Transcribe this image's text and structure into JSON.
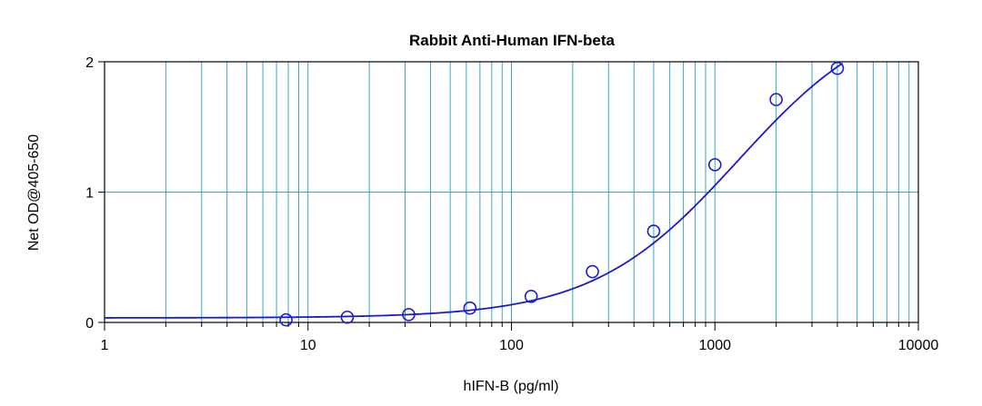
{
  "chart_data": {
    "type": "scatter",
    "title": "Rabbit Anti-Human IFN-beta",
    "xlabel": "hIFN-B (pg/ml)",
    "ylabel": "Net OD@405-650",
    "xscale": "log",
    "xlim": [
      1,
      10000
    ],
    "ylim": [
      0,
      2
    ],
    "x_ticks": [
      "1",
      "10",
      "100",
      "1000",
      "10000"
    ],
    "y_ticks": [
      "0",
      "1",
      "2"
    ],
    "grid": true,
    "colors": {
      "grid": "#3aa6c4",
      "series": "#1a1ad0",
      "axis": "#000000"
    },
    "series": [
      {
        "marker": "circle",
        "x": [
          7.8,
          15.6,
          31.25,
          62.5,
          125,
          250,
          500,
          1000,
          2000,
          4000
        ],
        "y": [
          0.02,
          0.04,
          0.06,
          0.11,
          0.2,
          0.39,
          0.7,
          1.21,
          1.71,
          1.95
        ]
      }
    ],
    "fit_curve": {
      "type": "4PL",
      "bottom": 0.035,
      "top": 2.45,
      "ec50": 1300,
      "hill": 1.22
    }
  }
}
